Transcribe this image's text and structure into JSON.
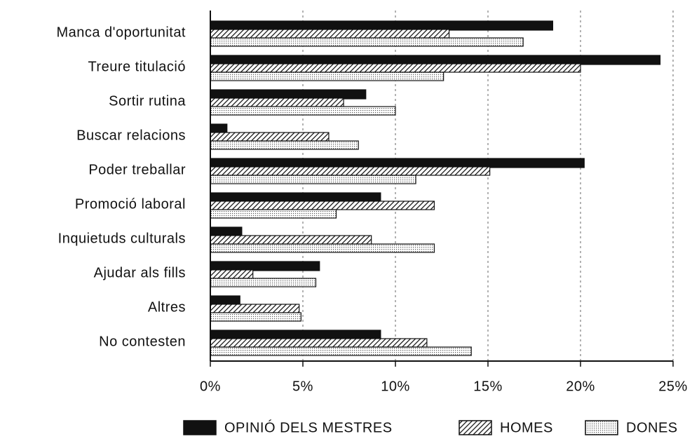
{
  "chart_data": {
    "type": "hbar",
    "categories": [
      "Manca d'oportunitat",
      "Treure titulació",
      "Sortir rutina",
      "Buscar relacions",
      "Poder treballar",
      "Promoció laboral",
      "Inquietuds culturals",
      "Ajudar als fills",
      "Altres",
      "No contesten"
    ],
    "series": [
      {
        "name": "OPINIÓ DELS MESTRES",
        "color": "#111111",
        "pattern": "solid",
        "values": [
          18.5,
          24.3,
          8.4,
          0.9,
          20.2,
          9.2,
          1.7,
          5.9,
          1.6,
          9.2
        ]
      },
      {
        "name": "HOMES",
        "color": "#111111",
        "pattern": "hatch",
        "values": [
          12.9,
          20.0,
          7.2,
          6.4,
          15.1,
          12.1,
          8.7,
          2.3,
          4.8,
          11.7
        ]
      },
      {
        "name": "DONES",
        "color": "#111111",
        "pattern": "dots",
        "values": [
          16.9,
          12.6,
          10.0,
          8.0,
          11.1,
          6.8,
          12.1,
          5.7,
          4.9,
          14.1
        ]
      }
    ],
    "xlim": [
      0,
      25
    ],
    "xticks": [
      {
        "value": 0,
        "label": "0%"
      },
      {
        "value": 5,
        "label": "5%"
      },
      {
        "value": 10,
        "label": "10%"
      },
      {
        "value": 15,
        "label": "15%"
      },
      {
        "value": 20,
        "label": "20%"
      },
      {
        "value": 25,
        "label": "25%"
      }
    ],
    "grid": true,
    "legend": "bottom"
  }
}
